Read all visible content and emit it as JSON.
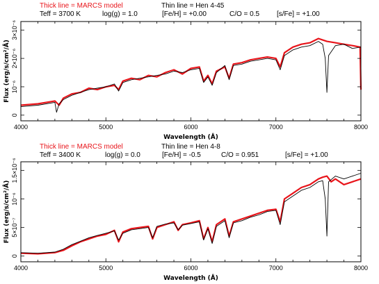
{
  "panels": [
    {
      "legend_red": "Thick line = MARCS model",
      "legend_black": "Thin line = Hen 4-45",
      "params": [
        "Teff = 3700 K",
        "log(g) = 1.0",
        "[Fe/H] = +0.00",
        "C/O = 0.5",
        "[s/Fe] = +1.00"
      ]
    },
    {
      "legend_red": "Thick line = MARCS model",
      "legend_black": "Thin line = Hen 4-8",
      "params": [
        "Teff = 3400 K",
        "log(g) = 0.0",
        "[Fe/H] = -0.5",
        "C/O = 0.951",
        "[s/Fe] = +1.00"
      ]
    }
  ],
  "colors": {
    "model": "#e8141a",
    "observed": "#000000"
  },
  "chart_data": [
    {
      "type": "line",
      "xlabel": "Wavelength (Å)",
      "ylabel": "Flux (erg/s/cm²/Å)",
      "xlim": [
        4000,
        8000
      ],
      "ylim": [
        -2e-07,
        3.3e-06
      ],
      "x_ticks": [
        "4000",
        "5000",
        "6000",
        "7000",
        "8000"
      ],
      "y_ticks": [
        {
          "value": 0,
          "label": "0"
        },
        {
          "value": 1e-06,
          "label": "10⁻⁶"
        },
        {
          "value": 2e-06,
          "label": "2×10⁻⁶"
        },
        {
          "value": 3e-06,
          "label": "3×10⁻⁶"
        }
      ],
      "series": [
        {
          "name": "MARCS model",
          "x": [
            4000,
            4200,
            4400,
            4450,
            4500,
            4600,
            4700,
            4800,
            4900,
            5000,
            5100,
            5150,
            5200,
            5300,
            5400,
            5500,
            5600,
            5700,
            5800,
            5900,
            6000,
            6100,
            6150,
            6200,
            6250,
            6300,
            6400,
            6450,
            6500,
            6600,
            6700,
            6800,
            6900,
            7000,
            7050,
            7100,
            7200,
            7300,
            7400,
            7500,
            7550,
            7600,
            7700,
            7800,
            7900,
            7990,
            8000
          ],
          "y": [
            3.5e-07,
            4e-07,
            5e-07,
            3.5e-07,
            6e-07,
            7.5e-07,
            8e-07,
            9.5e-07,
            9e-07,
            1e-06,
            1.05e-06,
            9e-07,
            1.2e-06,
            1.3e-06,
            1.25e-06,
            1.4e-06,
            1.35e-06,
            1.5e-06,
            1.6e-06,
            1.45e-06,
            1.65e-06,
            1.7e-06,
            1.2e-06,
            1.4e-06,
            1.1e-06,
            1.55e-06,
            1.7e-06,
            1.3e-06,
            1.8e-06,
            1.85e-06,
            1.95e-06,
            2e-06,
            2.05e-06,
            2e-06,
            1.7e-06,
            2.2e-06,
            2.4e-06,
            2.5e-06,
            2.55e-06,
            2.7e-06,
            2.65e-06,
            2.6e-06,
            2.55e-06,
            2.5e-06,
            2.45e-06,
            2.4e-06,
            9e-07
          ]
        },
        {
          "name": "Hen 4-45",
          "x": [
            4000,
            4200,
            4400,
            4420,
            4450,
            4500,
            4600,
            4700,
            4800,
            4900,
            5000,
            5100,
            5150,
            5200,
            5300,
            5400,
            5500,
            5600,
            5700,
            5800,
            5900,
            6000,
            6100,
            6150,
            6200,
            6250,
            6300,
            6400,
            6450,
            6500,
            6600,
            6700,
            6800,
            6900,
            7000,
            7050,
            7100,
            7200,
            7300,
            7400,
            7500,
            7550,
            7580,
            7600,
            7620,
            7700,
            7800,
            7900,
            8000
          ],
          "y": [
            3e-07,
            3.5e-07,
            4.5e-07,
            1e-07,
            4e-07,
            5.5e-07,
            7e-07,
            8e-07,
            9e-07,
            9.5e-07,
            1e-06,
            1.1e-06,
            8.5e-07,
            1.15e-06,
            1.25e-06,
            1.3e-06,
            1.35e-06,
            1.4e-06,
            1.45e-06,
            1.55e-06,
            1.5e-06,
            1.6e-06,
            1.65e-06,
            1.15e-06,
            1.35e-06,
            1.05e-06,
            1.5e-06,
            1.75e-06,
            1.25e-06,
            1.75e-06,
            1.8e-06,
            1.9e-06,
            1.95e-06,
            2e-06,
            1.95e-06,
            1.6e-06,
            2.1e-06,
            2.3e-06,
            2.4e-06,
            2.45e-06,
            2.6e-06,
            2.5e-06,
            2e-06,
            8e-07,
            2.1e-06,
            2.45e-06,
            2.5e-06,
            2.35e-06,
            2.4e-06
          ]
        }
      ]
    },
    {
      "type": "line",
      "xlabel": "Wavelength (Å)",
      "ylabel": "Flux (erg/s/cm²/Å)",
      "xlim": [
        4000,
        8000
      ],
      "ylim": [
        -1e-07,
        1.65e-06
      ],
      "x_ticks": [
        "4000",
        "5000",
        "6000",
        "7000",
        "8000"
      ],
      "y_ticks": [
        {
          "value": 0,
          "label": "0"
        },
        {
          "value": 5e-07,
          "label": "5×10⁻⁷"
        },
        {
          "value": 1e-06,
          "label": "10⁻⁶"
        },
        {
          "value": 1.5e-06,
          "label": "1.5×10⁻⁶"
        }
      ],
      "series": [
        {
          "name": "MARCS model",
          "x": [
            4000,
            4200,
            4400,
            4500,
            4600,
            4700,
            4800,
            4900,
            5000,
            5100,
            5150,
            5200,
            5300,
            5400,
            5500,
            5550,
            5600,
            5700,
            5800,
            5850,
            5900,
            6000,
            6100,
            6150,
            6200,
            6250,
            6300,
            6400,
            6450,
            6500,
            6600,
            6700,
            6800,
            6900,
            7000,
            7050,
            7100,
            7200,
            7300,
            7400,
            7500,
            7550,
            7600,
            7650,
            7700,
            7800,
            7900,
            8000
          ],
          "y": [
            5e-08,
            4e-08,
            6e-08,
            1e-07,
            1.8e-07,
            2.5e-07,
            3e-07,
            3.5e-07,
            3.8e-07,
            4.5e-07,
            2.5e-07,
            4.2e-07,
            4.8e-07,
            5e-07,
            5.2e-07,
            3e-07,
            5e-07,
            5.5e-07,
            6e-07,
            4.5e-07,
            5.5e-07,
            5.8e-07,
            6.2e-07,
            3e-07,
            5e-07,
            2.5e-07,
            5.5e-07,
            6.5e-07,
            3.5e-07,
            6e-07,
            6.5e-07,
            7e-07,
            7.5e-07,
            8e-07,
            8.2e-07,
            6e-07,
            1e-06,
            1.1e-06,
            1.2e-06,
            1.25e-06,
            1.35e-06,
            1.38e-06,
            1.4e-06,
            1.3e-06,
            1.35e-06,
            1.25e-06,
            1.3e-06,
            1.35e-06
          ]
        },
        {
          "name": "Hen 4-8",
          "x": [
            4000,
            4200,
            4400,
            4500,
            4600,
            4700,
            4800,
            4900,
            5000,
            5100,
            5150,
            5200,
            5300,
            5400,
            5500,
            5550,
            5600,
            5700,
            5800,
            5850,
            5900,
            6000,
            6100,
            6150,
            6200,
            6250,
            6300,
            6400,
            6450,
            6500,
            6600,
            6700,
            6800,
            6900,
            7000,
            7050,
            7100,
            7200,
            7300,
            7400,
            7500,
            7550,
            7580,
            7600,
            7620,
            7700,
            7800,
            7900,
            8000
          ],
          "y": [
            6e-08,
            5e-08,
            7e-08,
            1.2e-07,
            2e-07,
            2.6e-07,
            3.2e-07,
            3.6e-07,
            4e-07,
            4.4e-07,
            2.8e-07,
            4e-07,
            4.6e-07,
            4.8e-07,
            5e-07,
            3.2e-07,
            5.2e-07,
            5.6e-07,
            5.8e-07,
            4.6e-07,
            5.4e-07,
            5.7e-07,
            6e-07,
            2.8e-07,
            4.8e-07,
            2.2e-07,
            5.2e-07,
            6.2e-07,
            3.2e-07,
            5.8e-07,
            6.2e-07,
            6.8e-07,
            7.2e-07,
            7.8e-07,
            8e-07,
            5.5e-07,
            9.5e-07,
            1.05e-06,
            1.15e-06,
            1.2e-06,
            1.3e-06,
            1.32e-06,
            1e-06,
            3.5e-07,
            1.3e-06,
            1.4e-06,
            1.35e-06,
            1.4e-06,
            1.45e-06
          ]
        }
      ]
    }
  ]
}
